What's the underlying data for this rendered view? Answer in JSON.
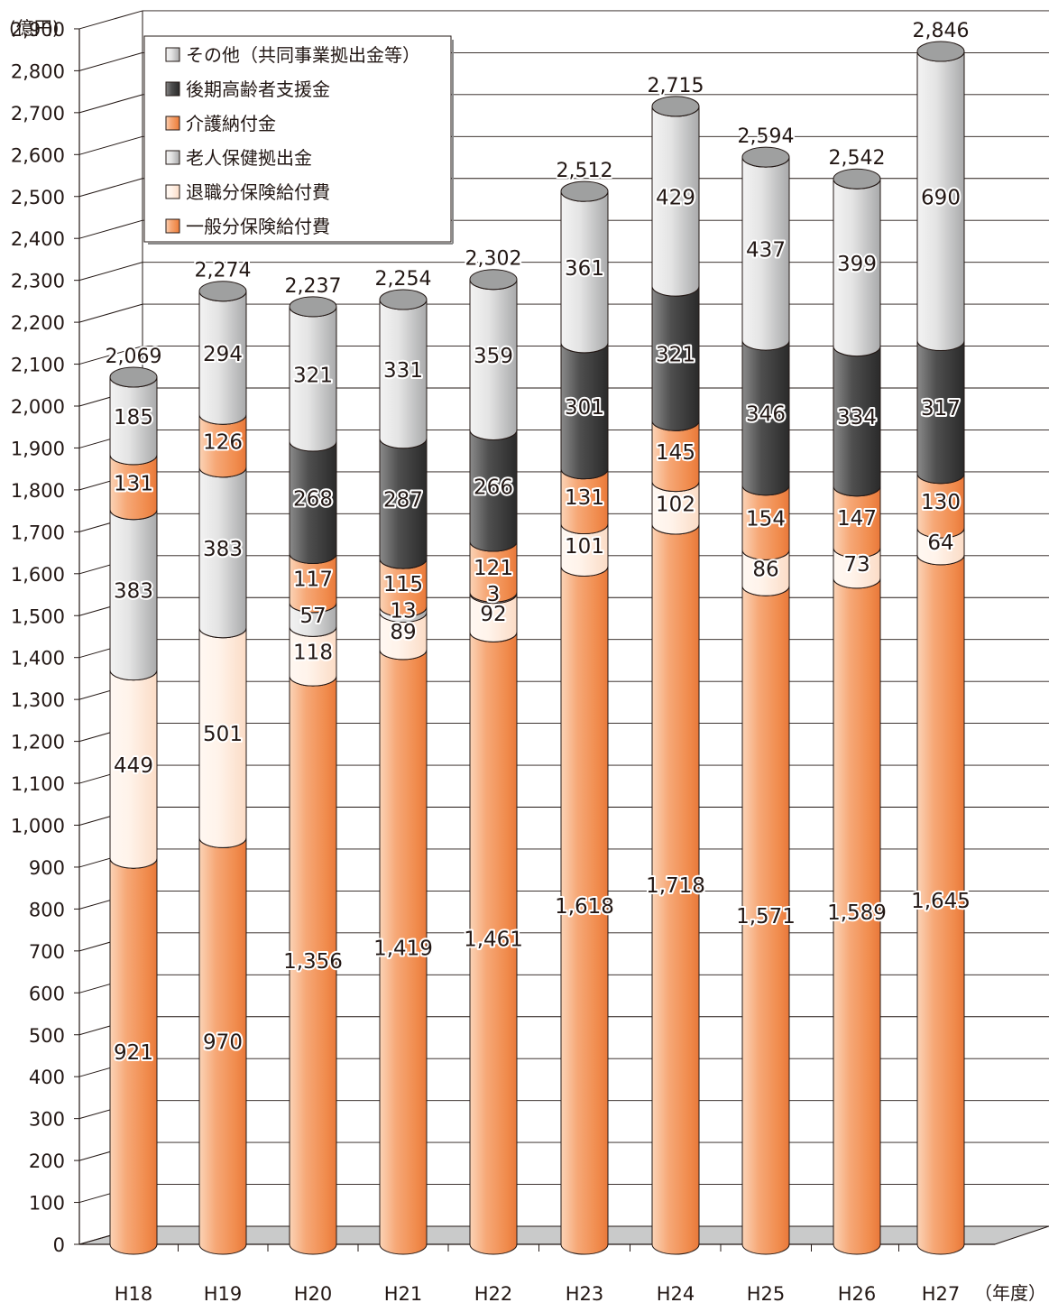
{
  "chart_data": {
    "type": "bar",
    "stacked": true,
    "y_unit_label": "(億円)",
    "x_unit_label": "（年度）",
    "categories": [
      "H18",
      "H19",
      "H20",
      "H21",
      "H22",
      "H23",
      "H24",
      "H25",
      "H26",
      "H27"
    ],
    "ylim": [
      0,
      2900
    ],
    "yticks": [
      "0",
      "100",
      "200",
      "300",
      "400",
      "500",
      "600",
      "700",
      "800",
      "900",
      "1,000",
      "1,100",
      "1,200",
      "1,300",
      "1,400",
      "1,500",
      "1,600",
      "1,700",
      "1,800",
      "1,900",
      "2,000",
      "2,100",
      "2,200",
      "2,300",
      "2,400",
      "2,500",
      "2,600",
      "2,700",
      "2,800",
      "2,900"
    ],
    "totals": [
      2069,
      2274,
      2237,
      2254,
      2302,
      2512,
      2715,
      2594,
      2542,
      2846
    ],
    "total_labels": [
      "2,069",
      "2,274",
      "2,237",
      "2,254",
      "2,302",
      "2,512",
      "2,715",
      "2,594",
      "2,542",
      "2,846"
    ],
    "grid": true,
    "legend_position": "top-left",
    "series": [
      {
        "name": "一般分保険給付費",
        "color": "#f39b62",
        "values": [
          921,
          970,
          1356,
          1419,
          1461,
          1618,
          1718,
          1571,
          1589,
          1645
        ],
        "labels": [
          "921",
          "970",
          "1,356",
          "1,419",
          "1,461",
          "1,618",
          "1,718",
          "1,571",
          "1,589",
          "1,645"
        ]
      },
      {
        "name": "退職分保険給付費",
        "color": "#fde7d8",
        "values": [
          449,
          501,
          118,
          89,
          92,
          101,
          102,
          86,
          73,
          64
        ],
        "labels": [
          "449",
          "501",
          "118",
          "89",
          "92",
          "101",
          "102",
          "86",
          "73",
          "64"
        ]
      },
      {
        "name": "老人保健拠出金",
        "color": "#cfd0d1",
        "values": [
          383,
          383,
          57,
          13,
          3,
          null,
          null,
          null,
          null,
          null
        ],
        "labels": [
          "383",
          "383",
          "57",
          "13",
          "3",
          "",
          "",
          "",
          "",
          ""
        ]
      },
      {
        "name": "介護納付金",
        "color": "#f39b62",
        "values": [
          131,
          126,
          117,
          115,
          121,
          131,
          145,
          154,
          147,
          130
        ],
        "labels": [
          "131",
          "126",
          "117",
          "115",
          "121",
          "131",
          "145",
          "154",
          "147",
          "130"
        ]
      },
      {
        "name": "後期高齢者支援金",
        "color": "#595757",
        "values": [
          null,
          null,
          268,
          287,
          266,
          301,
          321,
          346,
          334,
          317
        ],
        "labels": [
          "",
          "",
          "268",
          "287",
          "266",
          "301",
          "321",
          "346",
          "334",
          "317"
        ]
      },
      {
        "name": "その他（共同事業拠出金等）",
        "color": "#cfd0d1",
        "values": [
          185,
          294,
          321,
          331,
          359,
          361,
          429,
          437,
          399,
          690
        ],
        "labels": [
          "185",
          "294",
          "321",
          "331",
          "359",
          "361",
          "429",
          "437",
          "399",
          "690"
        ]
      }
    ],
    "legend_order": [
      "その他（共同事業拠出金等）",
      "後期高齢者支援金",
      "介護納付金",
      "老人保健拠出金",
      "退職分保険給付費",
      "一般分保険給付費"
    ]
  }
}
